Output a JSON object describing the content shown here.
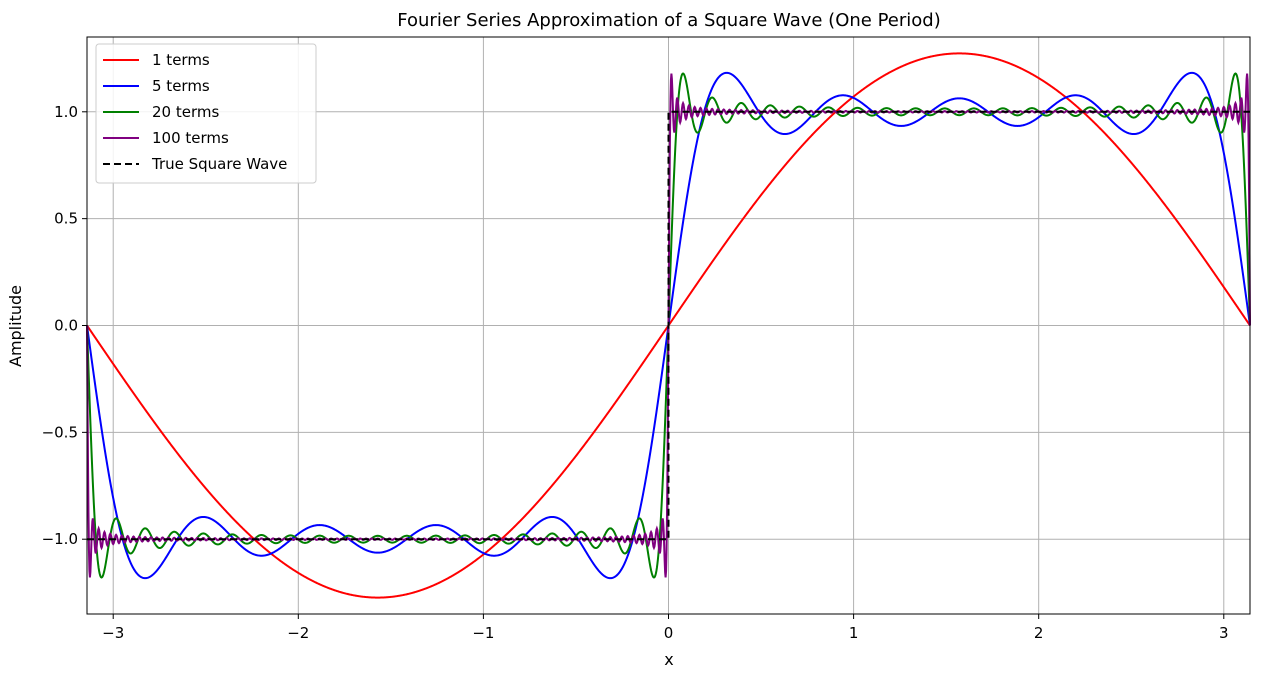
{
  "chart_data": {
    "type": "line",
    "title": "Fourier Series Approximation of a Square Wave (One Period)",
    "xlabel": "x",
    "ylabel": "Amplitude",
    "xlim": [
      -3.14159,
      3.14159
    ],
    "ylim": [
      -1.35,
      1.35
    ],
    "xticks": [
      -3,
      -2,
      -1,
      0,
      1,
      2,
      3
    ],
    "xtick_labels": [
      "−3",
      "−2",
      "−1",
      "0",
      "1",
      "2",
      "3"
    ],
    "yticks": [
      -1.0,
      -0.5,
      0.0,
      0.5,
      1.0
    ],
    "ytick_labels": [
      "−1.0",
      "−0.5",
      "0.0",
      "0.5",
      "1.0"
    ],
    "grid": true,
    "legend_position": "top-left",
    "series": [
      {
        "name": "1 terms",
        "terms": 1,
        "color": "#ff0000",
        "style": "solid"
      },
      {
        "name": "5 terms",
        "terms": 5,
        "color": "#0000ff",
        "style": "solid"
      },
      {
        "name": "20 terms",
        "terms": 20,
        "color": "#008000",
        "style": "solid"
      },
      {
        "name": "100 terms",
        "terms": 100,
        "color": "#800080",
        "style": "solid"
      },
      {
        "name": "True Square Wave",
        "terms": 0,
        "color": "#000000",
        "style": "dashed"
      }
    ]
  }
}
